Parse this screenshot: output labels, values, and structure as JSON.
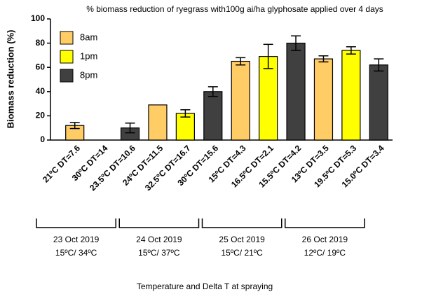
{
  "chart_data": {
    "type": "bar",
    "title": "% biomass reduction of ryegrass with100g ai/ha glyphosate applied over 4 days",
    "y_label": "Biomass reduction (%)",
    "x_label": "Temperature and Delta T at spraying",
    "categories": [
      "21ºC DT=7.6",
      "30ºC DT=14",
      "23.5ºC DT=10.6",
      "24ºC DT=11.5",
      "32.5ºC DT=16.7",
      "30ºC DT=15.6",
      "15ºC DT=4.3",
      "16.5ºC DT=2.1",
      "15.5ºC DT=4.2",
      "13ºC DT=3.5",
      "19.5ºC DT=5.3",
      "15.0ºC DT=3.4"
    ],
    "series": [
      {
        "name": "8am",
        "color": "#ffcc66",
        "values": [
          12,
          null,
          null,
          29,
          null,
          null,
          65,
          null,
          null,
          67,
          null,
          null
        ],
        "errors": [
          2.5,
          null,
          null,
          null,
          null,
          null,
          3,
          null,
          null,
          2.5,
          null,
          null
        ]
      },
      {
        "name": "1pm",
        "color": "#ffff00",
        "values": [
          null,
          0,
          null,
          null,
          22,
          null,
          null,
          69,
          null,
          null,
          74,
          null
        ],
        "errors": [
          null,
          null,
          null,
          null,
          3,
          null,
          null,
          10,
          null,
          null,
          3,
          null
        ]
      },
      {
        "name": "8pm",
        "color": "#404040",
        "values": [
          null,
          null,
          10,
          null,
          null,
          40,
          null,
          null,
          80,
          null,
          null,
          62
        ],
        "errors": [
          null,
          null,
          4,
          null,
          null,
          4,
          null,
          null,
          6,
          null,
          null,
          5
        ]
      }
    ],
    "ylim": [
      0,
      100
    ],
    "yticks": [
      0,
      20,
      40,
      60,
      80,
      100
    ],
    "date_groups": [
      {
        "label": "23 Oct 2019",
        "temps": "15ºC/ 34ºC"
      },
      {
        "label": "24 Oct 2019",
        "temps": "15ºC/ 37ºC"
      },
      {
        "label": "25 Oct 2019",
        "temps": "15ºC/ 21ºC"
      },
      {
        "label": "26 Oct 2019",
        "temps": "12ºC/ 19ºC"
      }
    ]
  }
}
